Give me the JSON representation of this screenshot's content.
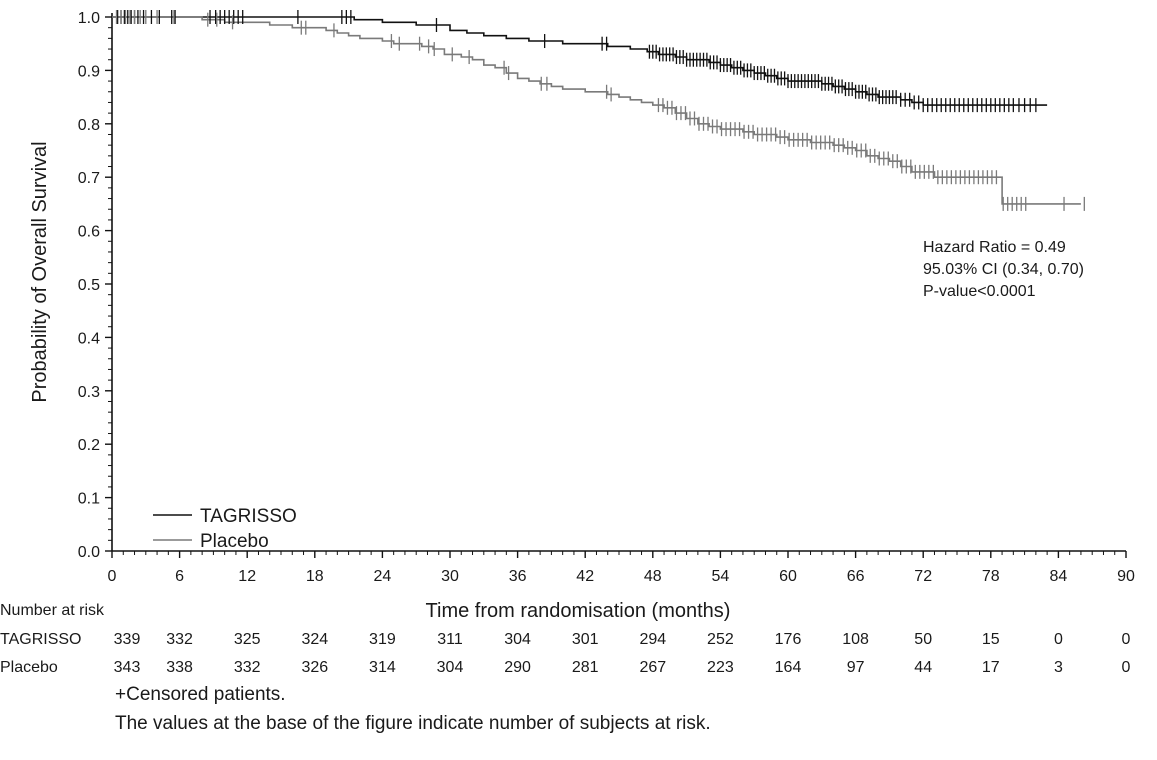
{
  "chart_data": {
    "type": "line",
    "subtype": "kaplan-meier",
    "xlabel": "Time from randomisation (months)",
    "ylabel": "Probability of Overall Survival",
    "xlim": [
      0,
      90
    ],
    "ylim": [
      0.0,
      1.0
    ],
    "x_ticks": [
      "0",
      "6",
      "12",
      "18",
      "24",
      "30",
      "36",
      "42",
      "48",
      "54",
      "60",
      "66",
      "72",
      "78",
      "84",
      "90"
    ],
    "y_ticks": [
      "0.0",
      "0.1",
      "0.2",
      "0.3",
      "0.4",
      "0.5",
      "0.6",
      "0.7",
      "0.8",
      "0.9",
      "1.0"
    ],
    "grid": false,
    "legend_position": "bottom-left",
    "series": [
      {
        "name": "TAGRISSO",
        "color": "#111111",
        "steps": [
          [
            0,
            1.0
          ],
          [
            21.5,
            0.995
          ],
          [
            24,
            0.99
          ],
          [
            27,
            0.985
          ],
          [
            30,
            0.975
          ],
          [
            31.5,
            0.97
          ],
          [
            33,
            0.965
          ],
          [
            35,
            0.96
          ],
          [
            37,
            0.955
          ],
          [
            40,
            0.95
          ],
          [
            44,
            0.945
          ],
          [
            46,
            0.94
          ],
          [
            47.5,
            0.935
          ],
          [
            48.5,
            0.93
          ],
          [
            50,
            0.925
          ],
          [
            51,
            0.92
          ],
          [
            53,
            0.915
          ],
          [
            54,
            0.91
          ],
          [
            55,
            0.905
          ],
          [
            56,
            0.9
          ],
          [
            57,
            0.895
          ],
          [
            58,
            0.89
          ],
          [
            59,
            0.885
          ],
          [
            60,
            0.88
          ],
          [
            63,
            0.875
          ],
          [
            64,
            0.87
          ],
          [
            65,
            0.865
          ],
          [
            66,
            0.86
          ],
          [
            67,
            0.855
          ],
          [
            68,
            0.85
          ],
          [
            70,
            0.845
          ],
          [
            71,
            0.84
          ],
          [
            72,
            0.835
          ],
          [
            83,
            0.835
          ]
        ],
        "censor_x": [
          0.5,
          0.8,
          1.1,
          1.4,
          1.7,
          2,
          2.3,
          2.8,
          3.5,
          4.2,
          5.3,
          5.6,
          8.7,
          9.2,
          9.6,
          10,
          10.4,
          10.8,
          11.2,
          11.6,
          16.5,
          20.4,
          20.8,
          21.2,
          28.8,
          38.4,
          43.5,
          43.9,
          47.7,
          48,
          48.3,
          48.6,
          48.9,
          49.2,
          49.5,
          49.8,
          50.1,
          50.4,
          50.7,
          51,
          51.3,
          51.6,
          51.9,
          52.2,
          52.5,
          52.8,
          53.1,
          53.4,
          53.7,
          54,
          54.3,
          54.6,
          54.9,
          55.2,
          55.5,
          55.8,
          56.1,
          56.4,
          56.7,
          57,
          57.3,
          57.6,
          57.9,
          58.2,
          58.5,
          58.8,
          59.1,
          59.4,
          59.7,
          60,
          60.3,
          60.6,
          60.9,
          61.2,
          61.5,
          61.8,
          62.1,
          62.4,
          62.7,
          63,
          63.3,
          63.6,
          63.9,
          64.2,
          64.5,
          64.8,
          65.1,
          65.4,
          65.7,
          66,
          66.3,
          66.6,
          66.9,
          67.2,
          67.5,
          67.8,
          68.1,
          68.4,
          68.7,
          69,
          69.3,
          69.6,
          70,
          70.4,
          70.8,
          71.2,
          71.6,
          72,
          72.4,
          72.8,
          73.2,
          73.6,
          74,
          74.4,
          74.8,
          75.2,
          75.6,
          76,
          76.4,
          76.8,
          77.2,
          77.6,
          78,
          78.4,
          78.8,
          79.2,
          79.6,
          80,
          80.5,
          81,
          81.5,
          82
        ]
      },
      {
        "name": "Placebo",
        "color": "#7a7a7a",
        "steps": [
          [
            0,
            1.0
          ],
          [
            8,
            0.995
          ],
          [
            10,
            0.99
          ],
          [
            14,
            0.985
          ],
          [
            16,
            0.98
          ],
          [
            19,
            0.975
          ],
          [
            20,
            0.97
          ],
          [
            21,
            0.965
          ],
          [
            22,
            0.96
          ],
          [
            24,
            0.955
          ],
          [
            25,
            0.95
          ],
          [
            27.5,
            0.945
          ],
          [
            28.5,
            0.94
          ],
          [
            29.5,
            0.93
          ],
          [
            31,
            0.925
          ],
          [
            32,
            0.92
          ],
          [
            33,
            0.91
          ],
          [
            34,
            0.905
          ],
          [
            35,
            0.895
          ],
          [
            36,
            0.885
          ],
          [
            37,
            0.88
          ],
          [
            38,
            0.875
          ],
          [
            39,
            0.87
          ],
          [
            40,
            0.865
          ],
          [
            42,
            0.86
          ],
          [
            44,
            0.855
          ],
          [
            45,
            0.85
          ],
          [
            46,
            0.845
          ],
          [
            47,
            0.84
          ],
          [
            48,
            0.835
          ],
          [
            49,
            0.83
          ],
          [
            50,
            0.82
          ],
          [
            51,
            0.81
          ],
          [
            52,
            0.8
          ],
          [
            53,
            0.795
          ],
          [
            54,
            0.79
          ],
          [
            56,
            0.785
          ],
          [
            57,
            0.78
          ],
          [
            59,
            0.775
          ],
          [
            60,
            0.77
          ],
          [
            62,
            0.765
          ],
          [
            64,
            0.76
          ],
          [
            65,
            0.755
          ],
          [
            66,
            0.75
          ],
          [
            67,
            0.74
          ],
          [
            68,
            0.735
          ],
          [
            69,
            0.73
          ],
          [
            70,
            0.72
          ],
          [
            71,
            0.71
          ],
          [
            73,
            0.7
          ],
          [
            79,
            0.65
          ],
          [
            86,
            0.65
          ]
        ],
        "censor_x": [
          0.4,
          0.8,
          1.2,
          1.6,
          2,
          2.5,
          3,
          4,
          5.5,
          8.5,
          9.3,
          10.7,
          16.8,
          17.2,
          19.7,
          24.8,
          25.5,
          27.3,
          28.1,
          28.6,
          30.2,
          31.7,
          34.8,
          35.2,
          38.1,
          38.6,
          43.9,
          44.3,
          48.5,
          48.9,
          49.3,
          49.7,
          50.1,
          50.5,
          50.9,
          51.3,
          51.7,
          52.1,
          52.5,
          52.9,
          53.3,
          53.7,
          54.1,
          54.5,
          54.9,
          55.3,
          55.7,
          56.1,
          56.5,
          56.9,
          57.3,
          57.7,
          58.1,
          58.5,
          58.9,
          59.3,
          59.7,
          60.1,
          60.5,
          60.9,
          61.3,
          61.7,
          62.1,
          62.5,
          62.9,
          63.3,
          63.7,
          64.1,
          64.5,
          64.9,
          65.3,
          65.7,
          66.1,
          66.5,
          66.9,
          67.3,
          67.7,
          68.1,
          68.5,
          68.9,
          69.3,
          69.7,
          70.1,
          70.5,
          70.9,
          71.3,
          71.7,
          72.1,
          72.5,
          72.9,
          73.3,
          73.7,
          74.1,
          74.5,
          74.9,
          75.3,
          75.7,
          76.1,
          76.5,
          76.9,
          77.3,
          77.7,
          78.1,
          78.5,
          79.1,
          79.5,
          79.9,
          80.3,
          80.7,
          81.1,
          84.5,
          86.3
        ]
      }
    ],
    "annotations": [
      "Hazard Ratio = 0.49",
      "95.03% CI (0.34, 0.70)",
      "P-value<0.0001"
    ]
  },
  "risk_table": {
    "header": "Number at risk",
    "rows": [
      {
        "label": "TAGRISSO",
        "values": [
          "339",
          "332",
          "325",
          "324",
          "319",
          "311",
          "304",
          "301",
          "294",
          "252",
          "176",
          "108",
          "50",
          "15",
          "0",
          "0"
        ]
      },
      {
        "label": "Placebo",
        "values": [
          "343",
          "338",
          "332",
          "326",
          "314",
          "304",
          "290",
          "281",
          "267",
          "223",
          "164",
          "97",
          "44",
          "17",
          "3",
          "0"
        ]
      }
    ]
  },
  "footnotes": [
    "+Censored patients.",
    "The values at the base of the figure indicate number of subjects at risk."
  ]
}
